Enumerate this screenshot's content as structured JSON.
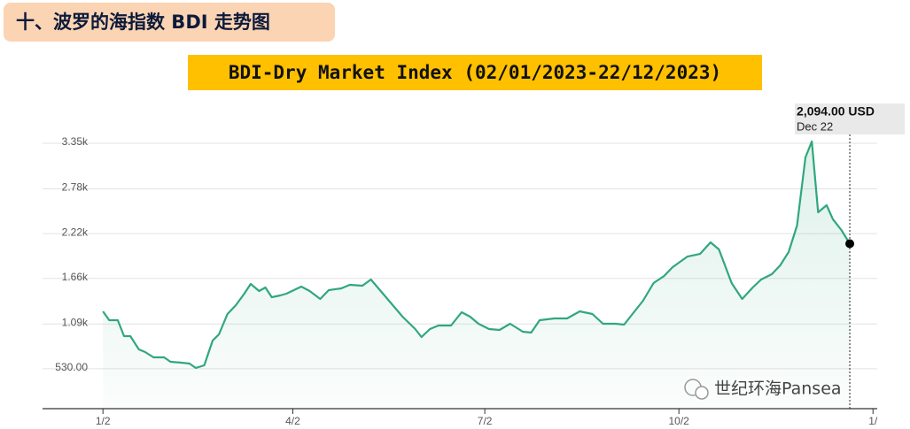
{
  "header": {
    "title": "十、波罗的海指数 BDI 走势图"
  },
  "chart_data": {
    "type": "line",
    "title": "BDI-Dry Market Index (02/01/2023-22/12/2023)",
    "watermark": "世纪环海Pansea",
    "annotation": {
      "text": "2,094.00 USD",
      "date": "Dec 22"
    },
    "color": "#31a77c",
    "grid": true,
    "xlim": [
      "2022-12-22",
      "2024-01-04"
    ],
    "xticks": [
      {
        "value": "2023-01-02",
        "label": "1/2"
      },
      {
        "value": "2023-04-02",
        "label": "4/2"
      },
      {
        "value": "2023-07-02",
        "label": "7/2"
      },
      {
        "value": "2023-10-02",
        "label": "10/2"
      },
      {
        "value": "2024-01-02",
        "label": "1/"
      }
    ],
    "ylim": [
      30,
      3815
    ],
    "yticks": [
      {
        "value": 530,
        "label": "530.00"
      },
      {
        "value": 1090,
        "label": "1.09k"
      },
      {
        "value": 1660,
        "label": "1.66k"
      },
      {
        "value": 2220,
        "label": "2.22k"
      },
      {
        "value": 2780,
        "label": "2.78k"
      },
      {
        "value": 3350,
        "label": "3.35k"
      }
    ],
    "x": [
      "2023-01-02",
      "2023-01-05",
      "2023-01-09",
      "2023-01-12",
      "2023-01-15",
      "2023-01-19",
      "2023-01-22",
      "2023-01-26",
      "2023-01-31",
      "2023-02-03",
      "2023-02-08",
      "2023-02-12",
      "2023-02-15",
      "2023-02-19",
      "2023-02-23",
      "2023-02-26",
      "2023-03-02",
      "2023-03-06",
      "2023-03-10",
      "2023-03-13",
      "2023-03-17",
      "2023-03-20",
      "2023-03-23",
      "2023-03-27",
      "2023-03-30",
      "2023-04-06",
      "2023-04-10",
      "2023-04-15",
      "2023-04-19",
      "2023-04-25",
      "2023-04-29",
      "2023-05-05",
      "2023-05-09",
      "2023-05-14",
      "2023-05-19",
      "2023-05-24",
      "2023-05-30",
      "2023-06-02",
      "2023-06-06",
      "2023-06-10",
      "2023-06-16",
      "2023-06-21",
      "2023-06-25",
      "2023-06-29",
      "2023-07-04",
      "2023-07-09",
      "2023-07-14",
      "2023-07-20",
      "2023-07-24",
      "2023-07-28",
      "2023-08-04",
      "2023-08-10",
      "2023-08-16",
      "2023-08-22",
      "2023-08-27",
      "2023-09-02",
      "2023-09-06",
      "2023-09-10",
      "2023-09-15",
      "2023-09-20",
      "2023-09-25",
      "2023-09-29",
      "2023-10-06",
      "2023-10-12",
      "2023-10-17",
      "2023-10-21",
      "2023-10-27",
      "2023-11-01",
      "2023-11-06",
      "2023-11-10",
      "2023-11-15",
      "2023-11-19",
      "2023-11-23",
      "2023-11-27",
      "2023-12-01",
      "2023-12-04",
      "2023-12-07",
      "2023-12-11",
      "2023-12-14",
      "2023-12-18",
      "2023-12-22"
    ],
    "values": [
      1247,
      1137,
      1137,
      937,
      937,
      771,
      738,
      672,
      672,
      617,
      605,
      594,
      539,
      572,
      882,
      960,
      1214,
      1325,
      1469,
      1590,
      1502,
      1546,
      1424,
      1447,
      1469,
      1557,
      1502,
      1402,
      1513,
      1535,
      1579,
      1568,
      1646,
      1491,
      1336,
      1181,
      1026,
      926,
      1026,
      1070,
      1070,
      1236,
      1181,
      1092,
      1026,
      1015,
      1092,
      993,
      982,
      1137,
      1159,
      1159,
      1247,
      1214,
      1092,
      1092,
      1081,
      1214,
      1380,
      1601,
      1690,
      1800,
      1933,
      1966,
      2111,
      2022,
      1601,
      1402,
      1546,
      1646,
      1712,
      1823,
      1989,
      2321,
      3173,
      3373,
      2487,
      2576,
      2399,
      2266,
      2094
    ]
  }
}
